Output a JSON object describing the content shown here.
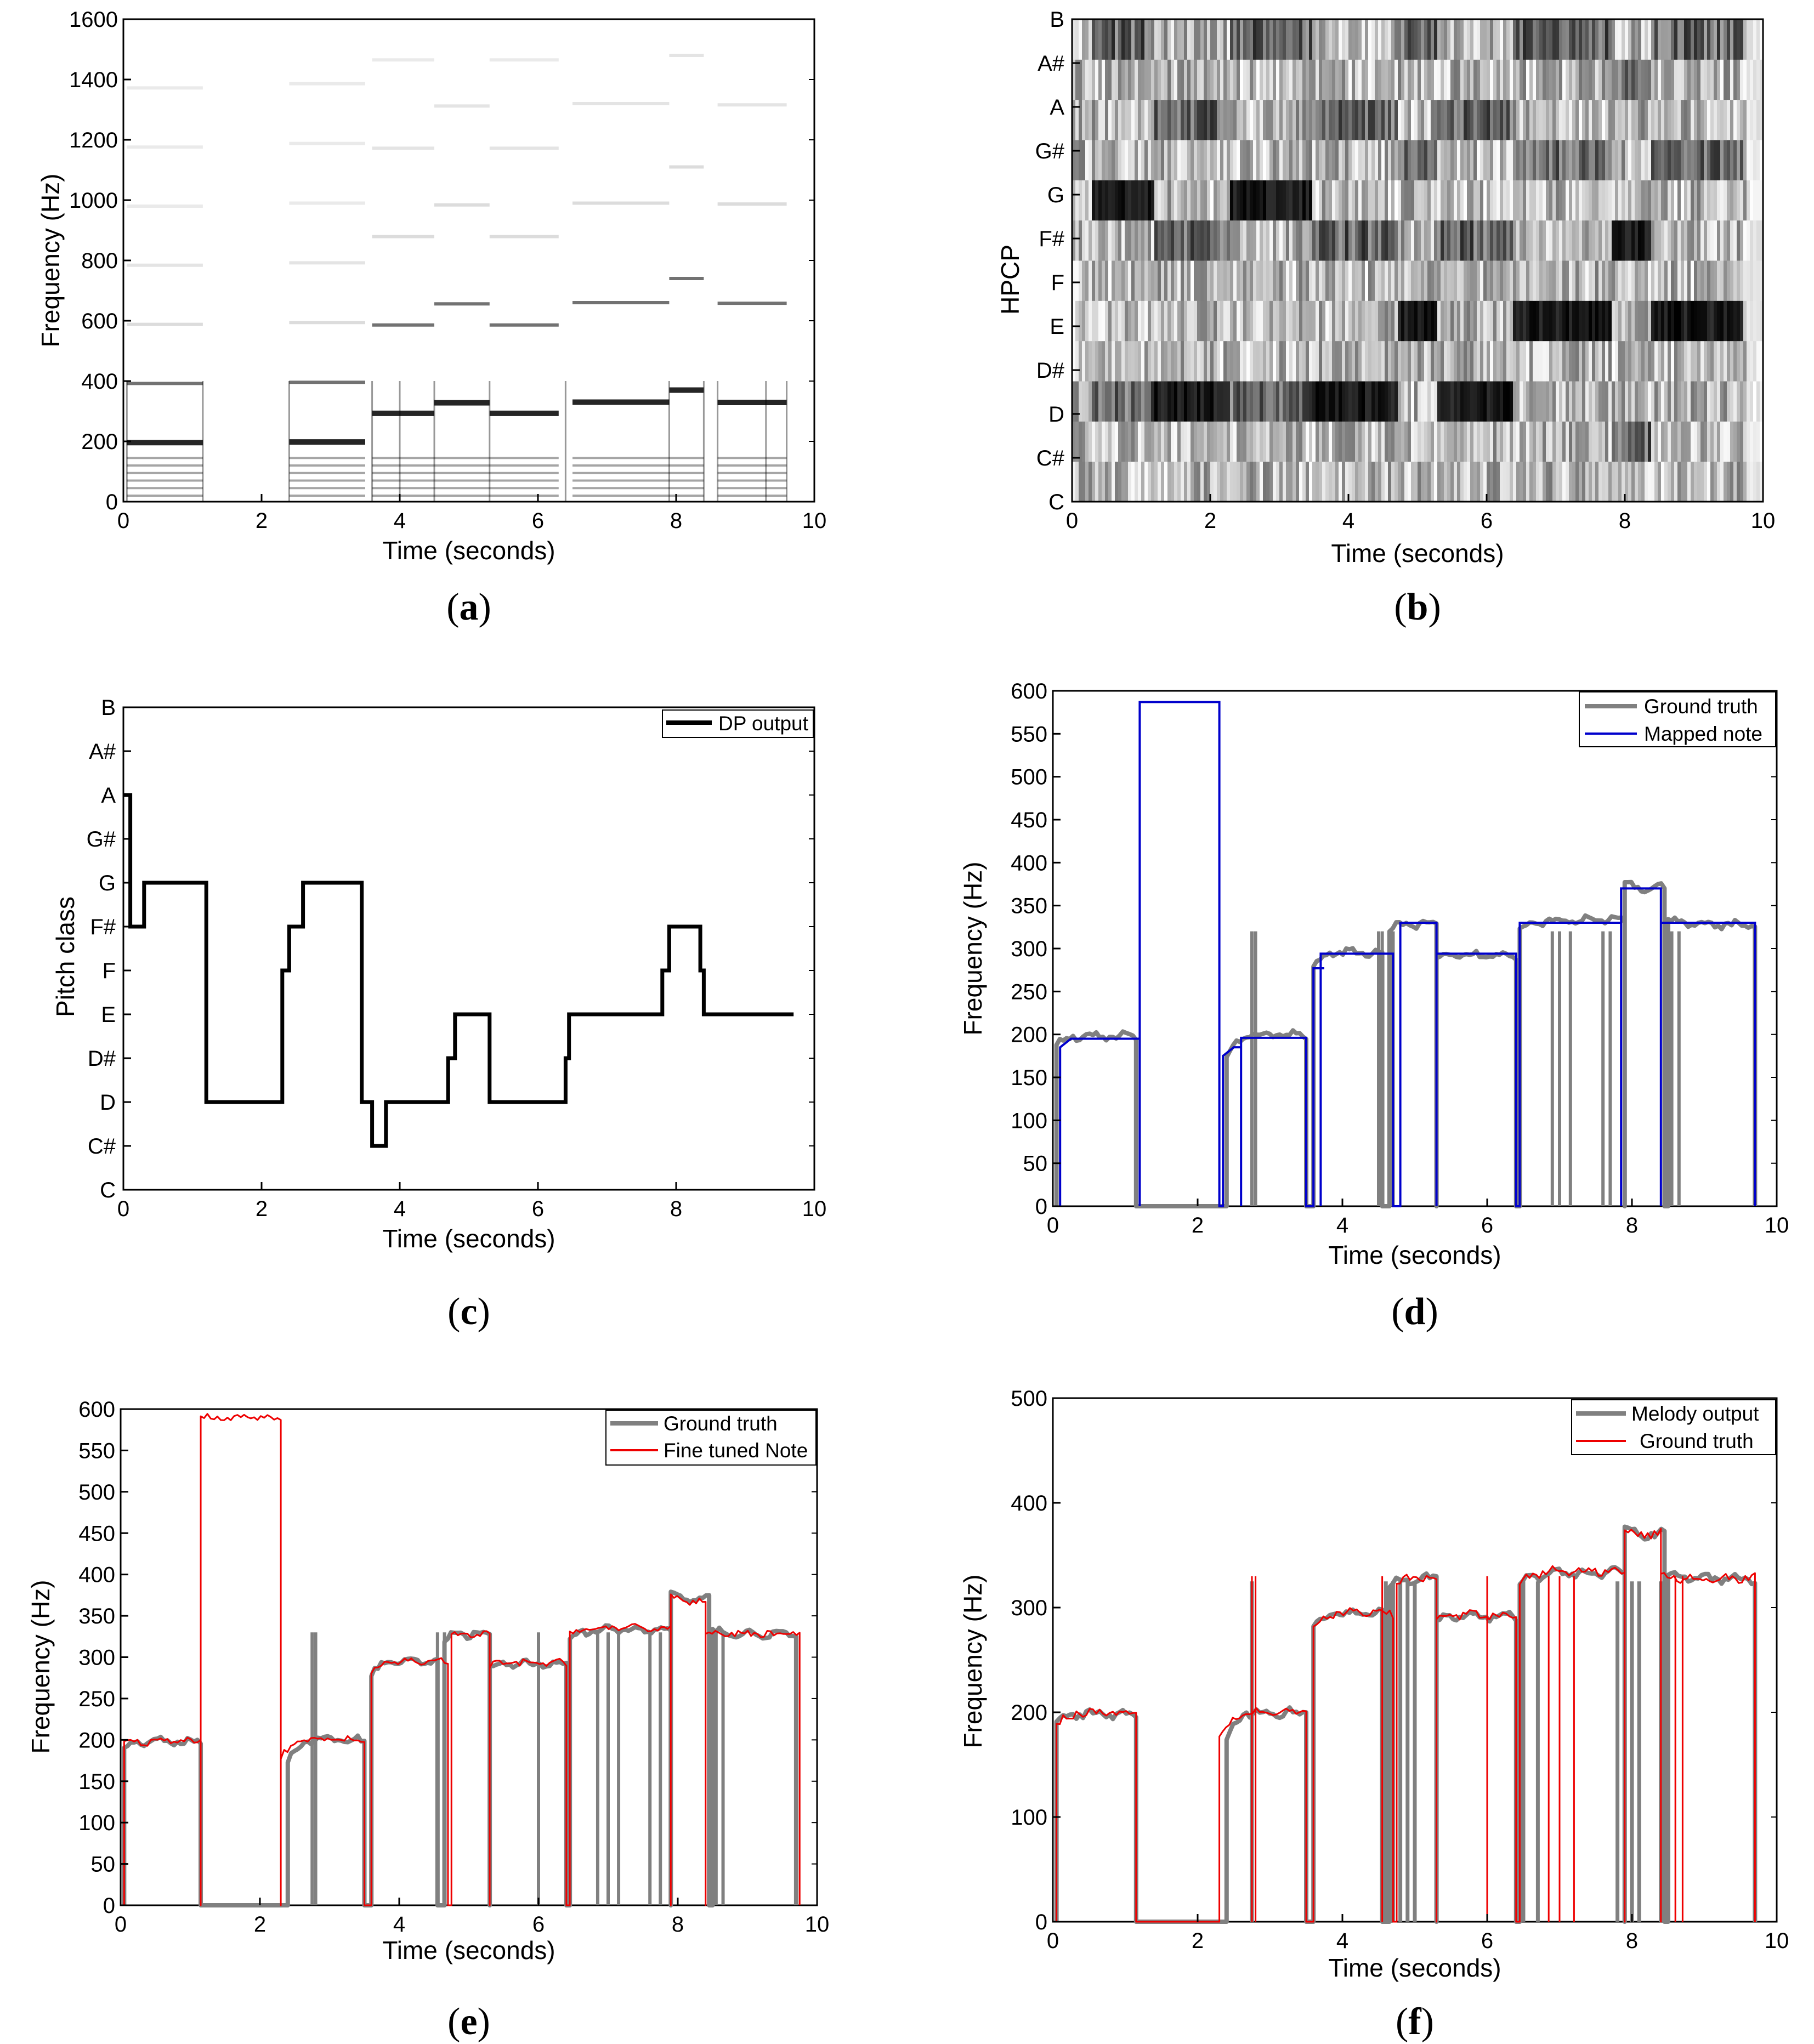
{
  "chart_data": [
    {
      "id": "a",
      "type": "heatmap",
      "panel_label": "a",
      "xlabel": "Time (seconds)",
      "ylabel": "Frequency (Hz)",
      "xlim": [
        0,
        10
      ],
      "ylim": [
        0,
        1600
      ],
      "xticks": [
        0,
        2,
        4,
        6,
        8,
        10
      ],
      "yticks": [
        0,
        200,
        400,
        600,
        800,
        1000,
        1200,
        1400,
        1600
      ],
      "description_values": {
        "segments": [
          {
            "t0": 0.05,
            "t1": 1.15,
            "f0": 196
          },
          {
            "t0": 2.4,
            "t1": 3.5,
            "f0": 198
          },
          {
            "t0": 3.6,
            "t1": 4.5,
            "f0": 293
          },
          {
            "t0": 4.5,
            "t1": 5.3,
            "f0": 328
          },
          {
            "t0": 5.3,
            "t1": 6.3,
            "f0": 293
          },
          {
            "t0": 6.5,
            "t1": 7.9,
            "f0": 330
          },
          {
            "t0": 7.9,
            "t1": 8.4,
            "f0": 370
          },
          {
            "t0": 8.6,
            "t1": 9.6,
            "f0": 329
          }
        ]
      }
    },
    {
      "id": "b",
      "type": "heatmap",
      "panel_label": "b",
      "xlabel": "Time (seconds)",
      "ylabel": "HPCP",
      "xlim": [
        0,
        10
      ],
      "xticks": [
        0,
        2,
        4,
        6,
        8,
        10
      ],
      "ycategories": [
        "C",
        "C#",
        "D",
        "D#",
        "E",
        "F",
        "F#",
        "G",
        "G#",
        "A",
        "A#",
        "B"
      ],
      "dominant": [
        {
          "t0": 0.3,
          "t1": 1.2,
          "pc": "G"
        },
        {
          "t0": 1.2,
          "t1": 2.3,
          "pc": "D"
        },
        {
          "t0": 2.3,
          "t1": 3.5,
          "pc": "G"
        },
        {
          "t0": 3.5,
          "t1": 4.7,
          "pc": "D"
        },
        {
          "t0": 4.7,
          "t1": 5.3,
          "pc": "E"
        },
        {
          "t0": 5.3,
          "t1": 6.4,
          "pc": "D"
        },
        {
          "t0": 6.4,
          "t1": 7.8,
          "pc": "E"
        },
        {
          "t0": 7.8,
          "t1": 8.4,
          "pc": "F#"
        },
        {
          "t0": 8.4,
          "t1": 9.7,
          "pc": "E"
        }
      ]
    },
    {
      "id": "c",
      "type": "line",
      "panel_label": "c",
      "xlabel": "Time (seconds)",
      "ylabel": "Pitch class",
      "xlim": [
        0,
        10
      ],
      "xticks": [
        0,
        2,
        4,
        6,
        8,
        10
      ],
      "ycategories": [
        "C",
        "C#",
        "D",
        "D#",
        "E",
        "F",
        "F#",
        "G",
        "G#",
        "A",
        "A#",
        "B"
      ],
      "legend": [
        "DP output"
      ],
      "series": [
        {
          "name": "DP output",
          "color": "#000000",
          "steps": [
            [
              0,
              9
            ],
            [
              0.1,
              6
            ],
            [
              0.3,
              7
            ],
            [
              1.2,
              2
            ],
            [
              2.3,
              5
            ],
            [
              2.4,
              6
            ],
            [
              2.6,
              7
            ],
            [
              3.45,
              2
            ],
            [
              3.6,
              1
            ],
            [
              3.8,
              2
            ],
            [
              4.7,
              3
            ],
            [
              4.8,
              4
            ],
            [
              5.3,
              2
            ],
            [
              6.4,
              3
            ],
            [
              6.45,
              4
            ],
            [
              7.8,
              5
            ],
            [
              7.9,
              6
            ],
            [
              8.35,
              5
            ],
            [
              8.4,
              4
            ],
            [
              9.7,
              4
            ]
          ]
        }
      ]
    },
    {
      "id": "d",
      "type": "line",
      "panel_label": "d",
      "xlabel": "Time (seconds)",
      "ylabel": "Frequency (Hz)",
      "xlim": [
        0,
        10
      ],
      "ylim": [
        0,
        600
      ],
      "xticks": [
        0,
        2,
        4,
        6,
        8,
        10
      ],
      "yticks": [
        0,
        50,
        100,
        150,
        200,
        250,
        300,
        350,
        400,
        450,
        500,
        550,
        600
      ],
      "legend": [
        "Ground truth",
        "Mapped note"
      ],
      "series": [
        {
          "name": "Ground truth",
          "color": "#808080"
        },
        {
          "name": "Mapped note",
          "color": "#0000cc",
          "segments": [
            [
              0.1,
              1.2,
              185,
              195
            ],
            [
              1.2,
              2.3,
              587,
              587
            ],
            [
              2.35,
              2.6,
              175,
              185
            ],
            [
              2.6,
              3.5,
              196,
              196
            ],
            [
              3.6,
              3.7,
              277,
              277
            ],
            [
              3.7,
              4.7,
              294,
              294
            ],
            [
              4.8,
              5.3,
              330,
              330
            ],
            [
              5.3,
              6.4,
              294,
              294
            ],
            [
              6.45,
              7.85,
              330,
              330
            ],
            [
              7.85,
              8.4,
              370,
              370
            ],
            [
              8.4,
              9.7,
              330,
              330
            ]
          ]
        }
      ]
    },
    {
      "id": "e",
      "type": "line",
      "panel_label": "e",
      "xlabel": "Time (seconds)",
      "ylabel": "Frequency (Hz)",
      "xlim": [
        0,
        10
      ],
      "ylim": [
        0,
        600
      ],
      "xticks": [
        0,
        2,
        4,
        6,
        8,
        10
      ],
      "yticks": [
        0,
        50,
        100,
        150,
        200,
        250,
        300,
        350,
        400,
        450,
        500,
        550,
        600
      ],
      "legend": [
        "Ground truth",
        "Fine tuned Note"
      ],
      "series": [
        {
          "name": "Ground truth",
          "color": "#808080"
        },
        {
          "name": "Fine tuned Note",
          "color": "#ee0000",
          "segments": [
            [
              0.05,
              1.15,
              195,
              198
            ],
            [
              1.15,
              2.3,
              590,
              590
            ],
            [
              2.3,
              3.5,
              180,
              200
            ],
            [
              3.6,
              4.7,
              280,
              295
            ],
            [
              4.75,
              5.3,
              325,
              327
            ],
            [
              5.3,
              6.4,
              290,
              293
            ],
            [
              6.45,
              7.9,
              330,
              335
            ],
            [
              7.9,
              8.4,
              375,
              368
            ],
            [
              8.4,
              9.75,
              330,
              328
            ]
          ]
        }
      ]
    },
    {
      "id": "f",
      "type": "line",
      "panel_label": "f",
      "xlabel": "Time (seconds)",
      "ylabel": "Frequency (Hz)",
      "xlim": [
        0,
        10
      ],
      "ylim": [
        0,
        500
      ],
      "xticks": [
        0,
        2,
        4,
        6,
        8,
        10
      ],
      "yticks": [
        0,
        100,
        200,
        300,
        400,
        500
      ],
      "legend": [
        "Melody output",
        "Ground truth"
      ],
      "series": [
        {
          "name": "Melody output",
          "color": "#808080"
        },
        {
          "name": "Ground truth",
          "color": "#ee0000",
          "segments": [
            [
              0.05,
              1.15,
              188,
              200
            ],
            [
              2.3,
              3.5,
              180,
              200
            ],
            [
              3.6,
              4.7,
              280,
              295
            ],
            [
              4.75,
              5.3,
              320,
              328
            ],
            [
              5.3,
              6.4,
              288,
              293
            ],
            [
              6.45,
              7.9,
              325,
              335
            ],
            [
              7.9,
              8.4,
              375,
              370
            ],
            [
              8.4,
              9.7,
              330,
              328
            ]
          ]
        }
      ]
    }
  ]
}
